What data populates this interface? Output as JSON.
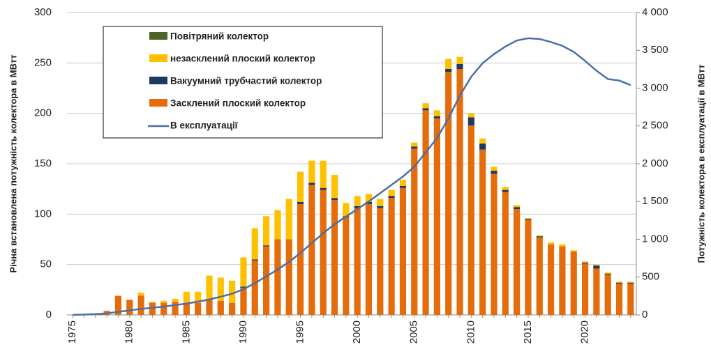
{
  "chart_data": {
    "type": "bar",
    "stacked": true,
    "ylabel": "Річна встановлена потужність колектора в МВтт",
    "y2label": "Потужність колектора в експлуатації в МВтт",
    "categories": [
      1975,
      null,
      null,
      null,
      null,
      1980,
      null,
      null,
      null,
      null,
      1985,
      null,
      null,
      null,
      null,
      1990,
      null,
      null,
      null,
      null,
      1995,
      null,
      null,
      null,
      null,
      2000,
      null,
      null,
      null,
      null,
      2005,
      null,
      null,
      null,
      null,
      2010,
      null,
      null,
      null,
      null,
      2015,
      null,
      null,
      null,
      null,
      2020,
      null,
      null,
      null,
      null
    ],
    "ylim": [
      0,
      300
    ],
    "yticks": [
      0,
      50,
      100,
      150,
      200,
      250,
      300
    ],
    "y2lim": [
      0,
      4000
    ],
    "y2ticks": [
      0,
      500,
      {
        "value": 1000,
        "label": "1 000"
      },
      {
        "value": 1500,
        "label": "1 500"
      },
      {
        "value": 2000,
        "label": "2 000"
      },
      {
        "value": 2500,
        "label": "2 500"
      },
      {
        "value": 3000,
        "label": "3 000"
      },
      {
        "value": 3500,
        "label": "3 500"
      },
      {
        "value": 4000,
        "label": "4 000"
      }
    ],
    "grid": true,
    "legend": "upper left",
    "series": [
      {
        "name": "Засклений плоский колектор",
        "color": "#e46c0a",
        "values": [
          0,
          1,
          1,
          4,
          19,
          15,
          19,
          12,
          12,
          13,
          12,
          12,
          15,
          14,
          12,
          27,
          54,
          68,
          75,
          75,
          110,
          129,
          124,
          114,
          97,
          106,
          110,
          106,
          116,
          126,
          165,
          203,
          195,
          241,
          244,
          188,
          164,
          140,
          122,
          105,
          94,
          77,
          70,
          68,
          63,
          51,
          46,
          40,
          31,
          31
        ]
      },
      {
        "name": "Вакуумний трубчастий колектор",
        "color": "#1f3864",
        "values": [
          0,
          0,
          0,
          0,
          0,
          0,
          0,
          0,
          0,
          0,
          0,
          0,
          0,
          0,
          0,
          1,
          1,
          1,
          0,
          0,
          2,
          2,
          2,
          2,
          1,
          2,
          2,
          2,
          2,
          2,
          2,
          2,
          2,
          3,
          5,
          8,
          6,
          3,
          2,
          2,
          1,
          1,
          0,
          0,
          0,
          1,
          3,
          1,
          1,
          1
        ]
      },
      {
        "name": "незасклений плоский колектор",
        "color": "#ffc000",
        "values": [
          0,
          0,
          0,
          0,
          0,
          0,
          3,
          1,
          2,
          3,
          11,
          11,
          24,
          23,
          22,
          29,
          31,
          29,
          29,
          40,
          30,
          22,
          27,
          23,
          13,
          10,
          8,
          7,
          6,
          6,
          4,
          5,
          6,
          10,
          7,
          4,
          5,
          4,
          3,
          2,
          1,
          1,
          2,
          2,
          1,
          1,
          1,
          1,
          1,
          1
        ]
      },
      {
        "name": "Повітряний колектор",
        "color": "#4f6228",
        "values": [
          0,
          0,
          0,
          0,
          0,
          0,
          0,
          0,
          0,
          0,
          0,
          0,
          0,
          0,
          0,
          0,
          0,
          0,
          0,
          0,
          0,
          0,
          0,
          0,
          0,
          0,
          0,
          0,
          0,
          0,
          0,
          0,
          0,
          0,
          0,
          0,
          0,
          0,
          0,
          0,
          0,
          0,
          0,
          0,
          0,
          0,
          0,
          0,
          0,
          0
        ]
      },
      {
        "name": "В експлуатації",
        "color": "#4a6fa5",
        "type": "line",
        "axis": "y2",
        "values": [
          0,
          5,
          10,
          20,
          40,
          60,
          80,
          95,
          110,
          130,
          150,
          175,
          205,
          240,
          280,
          340,
          420,
          510,
          600,
          700,
          820,
          950,
          1080,
          1200,
          1300,
          1400,
          1500,
          1610,
          1720,
          1830,
          1960,
          2150,
          2340,
          2600,
          2900,
          3150,
          3330,
          3450,
          3550,
          3630,
          3660,
          3650,
          3610,
          3560,
          3480,
          3360,
          3230,
          3120,
          3100,
          3040
        ]
      }
    ]
  }
}
